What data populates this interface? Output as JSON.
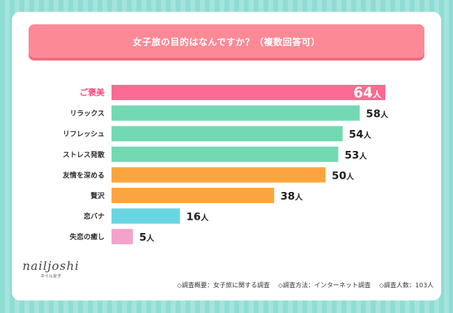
{
  "title": "女子旅の目的はなんですか？（複数回答可）",
  "chart_data": {
    "type": "bar",
    "orientation": "horizontal",
    "title": "女子旅の目的はなんですか？（複数回答可）",
    "unit": "人",
    "categories": [
      "ご褒美",
      "リラックス",
      "リフレッシュ",
      "ストレス発散",
      "友情を深める",
      "贅沢",
      "恋バナ",
      "失恋の癒し"
    ],
    "values": [
      64,
      58,
      54,
      53,
      50,
      38,
      16,
      5
    ],
    "colors": [
      "#fd6b93",
      "#73d9b2",
      "#73d9b2",
      "#73d9b2",
      "#fba540",
      "#fba540",
      "#6ad5e2",
      "#f3a2ca"
    ],
    "highlight_index": 0,
    "xlim": [
      0,
      64
    ]
  },
  "logo": {
    "main": "nailjoshi",
    "sub": "ネイル女子"
  },
  "footer": {
    "overview": "◇調査概要：女子旅に関する調査",
    "method": "◇調査方法：インターネット調査",
    "count": "◇調査人数：103人"
  }
}
